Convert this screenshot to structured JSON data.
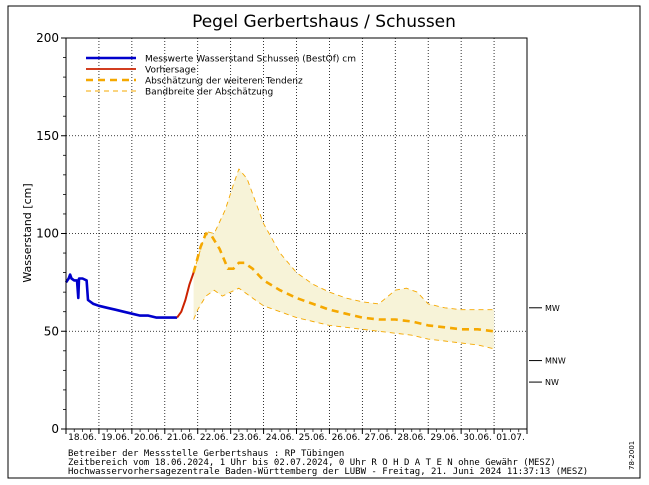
{
  "chart_data": {
    "type": "line",
    "title": "Pegel Gerbertshaus / Schussen",
    "ylabel": "Wasserstand [cm]",
    "xlabel": "",
    "ylim": [
      0,
      200
    ],
    "yticks": [
      0,
      50,
      100,
      150,
      200
    ],
    "xlim": [
      "18.06. 00:00",
      "01.07. 24:00"
    ],
    "x_tick_labels": [
      "18.06.",
      "19.06.",
      "20.06.",
      "21.06.",
      "22.06.",
      "23.06.",
      "24.06.",
      "25.06.",
      "26.06.",
      "27.06.",
      "28.06.",
      "29.06.",
      "30.06.",
      "01.07."
    ],
    "grid": true,
    "legend_position": "top-left",
    "legend": [
      {
        "label": "Messwerte Wasserstand Schussen   (BestOf)   cm",
        "color": "#0000cc",
        "style": "solid-thick"
      },
      {
        "label": "Vorhersage",
        "color": "#cc2200",
        "style": "solid"
      },
      {
        "label": "Abschätzung der weiteren Tendenz",
        "color": "#f5a800",
        "style": "dashed-thick"
      },
      {
        "label": "Bandbreite der Abschätzung",
        "color": "#f5a800",
        "style": "dashed-thin"
      }
    ],
    "reference_levels": [
      {
        "label": "MW",
        "value": 62
      },
      {
        "label": "MNW",
        "value": 35
      },
      {
        "label": "NW",
        "value": 24
      }
    ],
    "series": [
      {
        "name": "Messwerte Wasserstand Schussen   (BestOf)   cm",
        "color": "#0000cc",
        "points": [
          [
            "18.06. 00:00",
            75
          ],
          [
            "18.06. 02:00",
            77
          ],
          [
            "18.06. 03:00",
            79
          ],
          [
            "18.06. 04:00",
            77
          ],
          [
            "18.06. 06:00",
            76
          ],
          [
            "18.06. 08:00",
            76
          ],
          [
            "18.06. 09:00",
            67
          ],
          [
            "18.06. 09:30",
            77
          ],
          [
            "18.06. 12:00",
            77
          ],
          [
            "18.06. 15:00",
            76
          ],
          [
            "18.06. 16:00",
            66
          ],
          [
            "18.06. 20:00",
            64
          ],
          [
            "19.06. 00:00",
            63
          ],
          [
            "19.06. 06:00",
            62
          ],
          [
            "19.06. 12:00",
            61
          ],
          [
            "19.06. 18:00",
            60
          ],
          [
            "20.06. 00:00",
            59
          ],
          [
            "20.06. 06:00",
            58
          ],
          [
            "20.06. 12:00",
            58
          ],
          [
            "20.06. 18:00",
            57
          ],
          [
            "21.06. 00:00",
            57
          ],
          [
            "21.06. 06:00",
            57
          ],
          [
            "21.06. 09:00",
            57
          ]
        ]
      },
      {
        "name": "Vorhersage",
        "color": "#cc2200",
        "points": [
          [
            "21.06. 09:00",
            57
          ],
          [
            "21.06. 12:00",
            60
          ],
          [
            "21.06. 15:00",
            66
          ],
          [
            "21.06. 18:00",
            74
          ],
          [
            "21.06. 21:00",
            80
          ]
        ]
      },
      {
        "name": "Abschätzung der weiteren Tendenz",
        "color": "#f5a800",
        "points": [
          [
            "21.06. 21:00",
            80
          ],
          [
            "22.06. 02:00",
            93
          ],
          [
            "22.06. 06:00",
            100
          ],
          [
            "22.06. 10:00",
            99
          ],
          [
            "22.06. 16:00",
            92
          ],
          [
            "22.06. 22:00",
            82
          ],
          [
            "23.06. 02:00",
            82
          ],
          [
            "23.06. 06:00",
            85
          ],
          [
            "23.06. 10:00",
            85
          ],
          [
            "23.06. 16:00",
            82
          ],
          [
            "24.06. 00:00",
            76
          ],
          [
            "24.06. 12:00",
            71
          ],
          [
            "25.06. 00:00",
            67
          ],
          [
            "25.06. 12:00",
            64
          ],
          [
            "26.06. 00:00",
            61
          ],
          [
            "26.06. 12:00",
            59
          ],
          [
            "27.06. 00:00",
            57
          ],
          [
            "27.06. 12:00",
            56
          ],
          [
            "28.06. 00:00",
            56
          ],
          [
            "28.06. 12:00",
            55
          ],
          [
            "29.06. 00:00",
            53
          ],
          [
            "29.06. 12:00",
            52
          ],
          [
            "30.06. 00:00",
            51
          ],
          [
            "30.06. 12:00",
            51
          ],
          [
            "01.07. 00:00",
            50
          ]
        ]
      },
      {
        "name": "Bandbreite der Abschätzung",
        "color": "#f5a800",
        "role": "upper",
        "points": [
          [
            "21.06. 21:00",
            80
          ],
          [
            "22.06. 06:00",
            101
          ],
          [
            "22.06. 12:00",
            100
          ],
          [
            "22.06. 20:00",
            112
          ],
          [
            "23.06. 02:00",
            125
          ],
          [
            "23.06. 06:00",
            133
          ],
          [
            "23.06. 12:00",
            128
          ],
          [
            "24.06. 00:00",
            105
          ],
          [
            "24.06. 12:00",
            90
          ],
          [
            "25.06. 00:00",
            80
          ],
          [
            "25.06. 12:00",
            74
          ],
          [
            "26.06. 00:00",
            70
          ],
          [
            "26.06. 12:00",
            67
          ],
          [
            "27.06. 00:00",
            65
          ],
          [
            "27.06. 12:00",
            64
          ],
          [
            "28.06. 00:00",
            71
          ],
          [
            "28.06. 08:00",
            72
          ],
          [
            "28.06. 16:00",
            70
          ],
          [
            "29.06. 00:00",
            64
          ],
          [
            "29.06. 12:00",
            62
          ],
          [
            "30.06. 00:00",
            61
          ],
          [
            "30.06. 12:00",
            61
          ],
          [
            "01.07. 00:00",
            61
          ]
        ]
      },
      {
        "name": "Bandbreite der Abschätzung",
        "color": "#f5a800",
        "role": "lower",
        "points": [
          [
            "21.06. 21:00",
            56
          ],
          [
            "22.06. 00:00",
            61
          ],
          [
            "22.06. 06:00",
            68
          ],
          [
            "22.06. 12:00",
            71
          ],
          [
            "22.06. 18:00",
            68
          ],
          [
            "23.06. 00:00",
            70
          ],
          [
            "23.06. 06:00",
            72
          ],
          [
            "23.06. 18:00",
            66
          ],
          [
            "24.06. 00:00",
            63
          ],
          [
            "24.06. 12:00",
            60
          ],
          [
            "25.06. 00:00",
            57
          ],
          [
            "25.06. 12:00",
            55
          ],
          [
            "26.06. 00:00",
            53
          ],
          [
            "26.06. 12:00",
            52
          ],
          [
            "27.06. 00:00",
            51
          ],
          [
            "27.06. 12:00",
            50
          ],
          [
            "28.06. 00:00",
            49
          ],
          [
            "28.06. 12:00",
            48
          ],
          [
            "29.06. 00:00",
            46
          ],
          [
            "29.06. 12:00",
            45
          ],
          [
            "30.06. 00:00",
            44
          ],
          [
            "30.06. 12:00",
            43
          ],
          [
            "01.07. 00:00",
            41
          ]
        ]
      }
    ]
  },
  "footer": {
    "line1": "Betreiber der Messstelle Gerbertshaus : RP Tübingen",
    "line2": "Zeitbereich vom 18.06.2024, 1 Uhr bis 02.07.2024, 0 Uhr    R O H D A T E N  ohne Gewähr (MESZ)",
    "line3": "Hochwasservorhersagezentrale Baden-Württemberg der LUBW - Freitag, 21. Juni 2024 11:37:13 (MESZ)",
    "side_code": "78-2001"
  }
}
